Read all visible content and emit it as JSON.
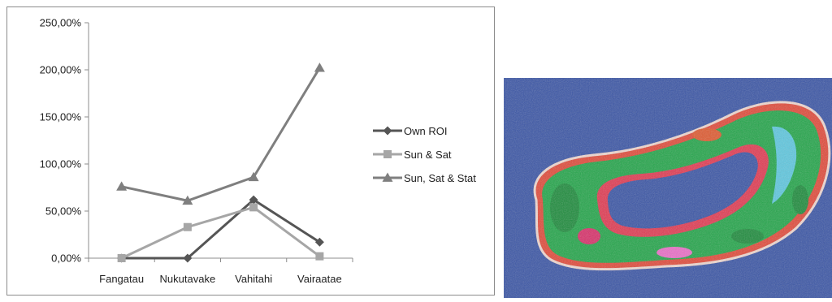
{
  "chart_data": {
    "type": "line",
    "categories": [
      "Fangatau",
      "Nukutavake",
      "Vahitahi",
      "Vairaatae"
    ],
    "ylim": [
      0,
      250
    ],
    "yticks": [
      0,
      50,
      100,
      150,
      200,
      250
    ],
    "ytick_labels": [
      "0,00%",
      "50,00%",
      "100,00%",
      "150,00%",
      "200,00%",
      "250,00%"
    ],
    "grid": false,
    "legend_position": "right",
    "series": [
      {
        "name": "Own ROI",
        "values": [
          0,
          0,
          62,
          17
        ],
        "color": "#555555",
        "marker": "diamond"
      },
      {
        "name": "Sun & Sat",
        "values": [
          0,
          33,
          54,
          2
        ],
        "color": "#a6a6a6",
        "marker": "square"
      },
      {
        "name": "Sun, Sat & Stat",
        "values": [
          76,
          61,
          86,
          202
        ],
        "color": "#7f7f7f",
        "marker": "triangle"
      }
    ]
  }
}
